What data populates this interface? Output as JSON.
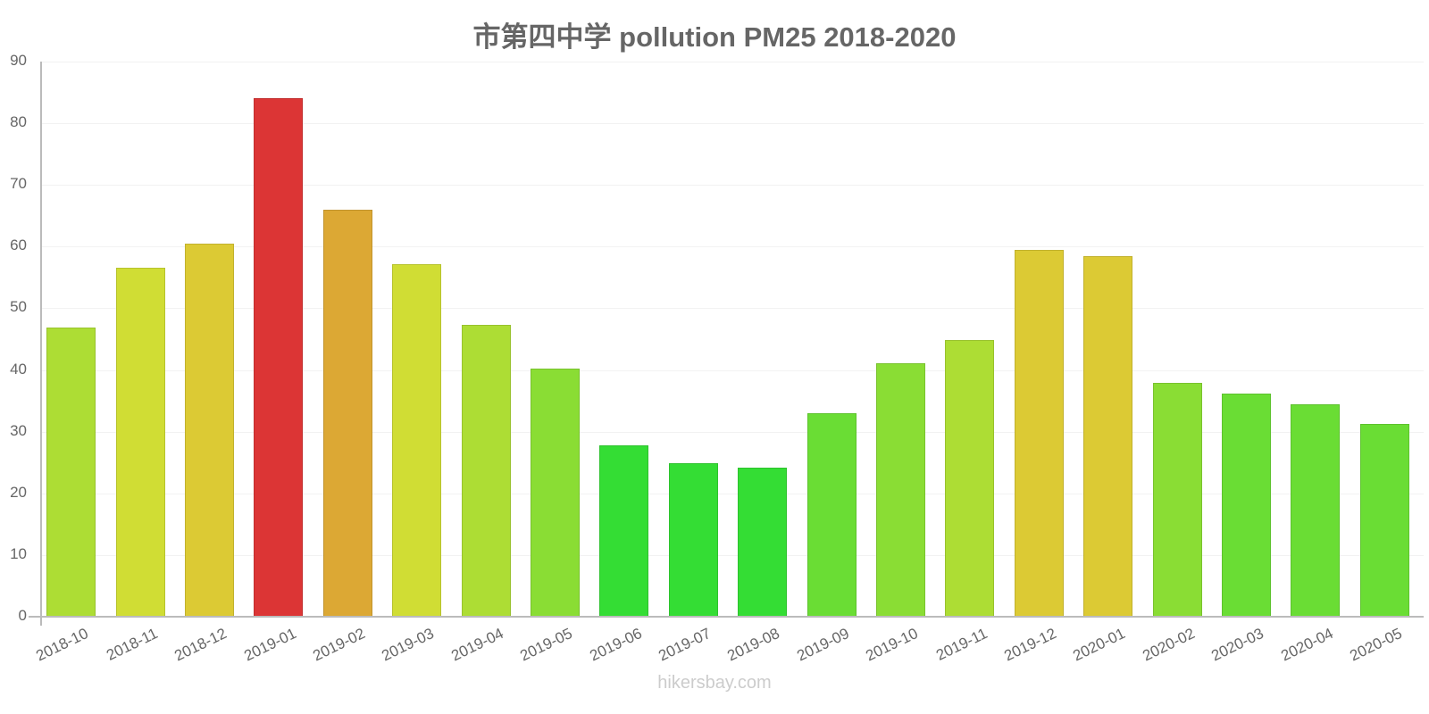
{
  "chart": {
    "title": "市第四中学 pollution PM25 2018-2020",
    "watermark": "hikersbay.com"
  },
  "chart_data": {
    "type": "bar",
    "title": "市第四中学 pollution PM25 2018-2020",
    "xlabel": "",
    "ylabel": "",
    "ylim": [
      0,
      90
    ],
    "yticks": [
      0,
      10,
      20,
      30,
      40,
      50,
      60,
      70,
      80,
      90
    ],
    "grid": true,
    "legend": null,
    "categories": [
      "2018-10",
      "2018-11",
      "2018-12",
      "2019-01",
      "2019-02",
      "2019-03",
      "2019-04",
      "2019-05",
      "2019-06",
      "2019-07",
      "2019-08",
      "2019-09",
      "2019-10",
      "2019-11",
      "2019-12",
      "2020-01",
      "2020-02",
      "2020-03",
      "2020-04",
      "2020-05"
    ],
    "values": [
      46.9,
      56.6,
      60.5,
      84.1,
      66.0,
      57.2,
      47.3,
      40.2,
      27.8,
      24.9,
      24.2,
      33.0,
      41.1,
      44.9,
      59.5,
      58.5,
      37.9,
      36.2,
      34.4,
      31.3
    ],
    "colors": [
      "#addd34",
      "#d0dd34",
      "#dcca34",
      "#dc3535",
      "#dca834",
      "#d0dd34",
      "#addd34",
      "#8add34",
      "#34dd34",
      "#34dd34",
      "#34dd34",
      "#6add34",
      "#8add34",
      "#addd34",
      "#dcca34",
      "#dcca34",
      "#8add34",
      "#6add34",
      "#6add34",
      "#6add34"
    ]
  }
}
